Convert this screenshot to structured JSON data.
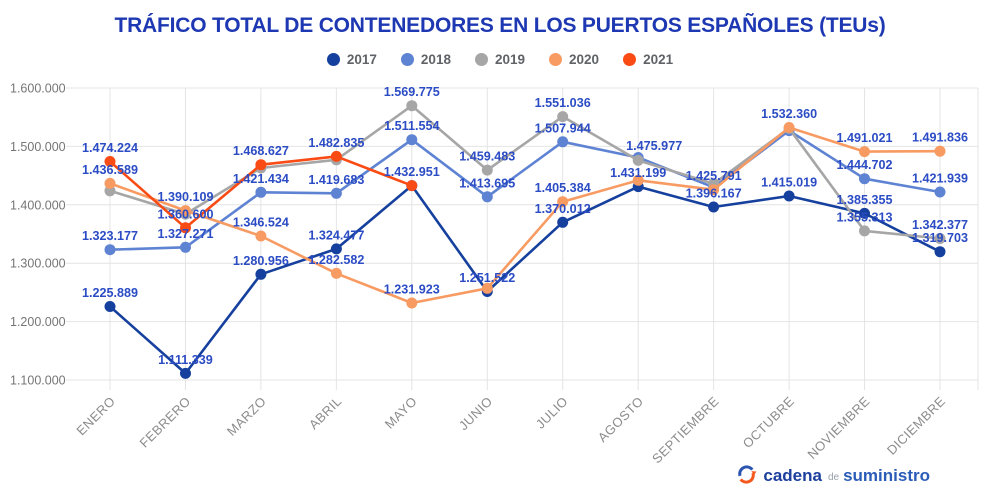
{
  "chart_data": {
    "type": "line",
    "title": "TRÁFICO TOTAL DE CONTENEDORES EN LOS PUERTOS ESPAÑOLES (TEUs)",
    "legend_position": "top",
    "grid": true,
    "categories": [
      "ENERO",
      "FEBRERO",
      "MARZO",
      "ABRIL",
      "MAYO",
      "JUNIO",
      "JULIO",
      "AGOSTO",
      "SEPTIEMBRE",
      "OCTUBRE",
      "NOVIEMBRE",
      "DICIEMBRE"
    ],
    "y_axis": {
      "min": 1100000,
      "max": 1600000,
      "step": 100000,
      "tick_values": [
        1600000,
        1500000,
        1400000,
        1300000,
        1200000,
        1100000
      ],
      "tick_labels": [
        "1.600.000",
        "1.500.000",
        "1.400.000",
        "1.300.000",
        "1.200.000",
        "1.100.000"
      ]
    },
    "series": [
      {
        "name": "2017",
        "color": "#16409e",
        "values": [
          1225889,
          1111339,
          1280956,
          1324477,
          1432951,
          1251522,
          1370012,
          1431199,
          1396167,
          1415019,
          1385355,
          1319703
        ],
        "labels": [
          "1.225.889",
          "1.111.339",
          "1.280.956",
          "1.324.477",
          null,
          "1.251.522",
          "1.370.012",
          "1.431.199",
          "1.396.167",
          "1.415.019",
          "1.385.355",
          "1.319.703"
        ],
        "label_offsets": {}
      },
      {
        "name": "2018",
        "color": "#5f83d3",
        "values": [
          1323177,
          1327271,
          1421434,
          1419683,
          1511554,
          1413695,
          1507944,
          1481000,
          1430000,
          1527000,
          1444702,
          1421939
        ],
        "labels": [
          "1.323.177",
          "1.327.271",
          "1.421.434",
          "1.419.683",
          "1.511.554",
          "1.413.695",
          "1.507.944",
          null,
          null,
          null,
          "1.444.702",
          "1.421.939"
        ],
        "label_offsets": {}
      },
      {
        "name": "2019",
        "color": "#a6a6a6",
        "values": [
          1424000,
          1384000,
          1463000,
          1477000,
          1569775,
          1459483,
          1551036,
          1475977,
          1436000,
          1531000,
          1355313,
          1342377
        ],
        "labels": [
          null,
          null,
          null,
          null,
          "1.569.775",
          "1.459.483",
          "1.551.036",
          "1.475.977",
          null,
          null,
          "1.355.313",
          "1.342.377"
        ],
        "label_offsets": {
          "7": [
            16,
            -1
          ]
        }
      },
      {
        "name": "2020",
        "color": "#f89b63",
        "values": [
          1436589,
          1390109,
          1346524,
          1282582,
          1231923,
          1257000,
          1405384,
          1442000,
          1425791,
          1532360,
          1491021,
          1491836
        ],
        "labels": [
          "1.436.589",
          "1.390.109",
          "1.346.524",
          "1.282.582",
          "1.231.923",
          null,
          "1.405.384",
          null,
          "1.425.791",
          "1.532.360",
          "1.491.021",
          "1.491.836"
        ],
        "label_offsets": {}
      },
      {
        "name": "2021",
        "color": "#fa4b14",
        "values": [
          1474224,
          1360600,
          1468627,
          1482835,
          1432951,
          null,
          null,
          null,
          null,
          null,
          null,
          null
        ],
        "labels": [
          "1.474.224",
          "1.360.600",
          "1.468.627",
          "1.482.835",
          "1.432.951",
          null,
          null,
          null,
          null,
          null,
          null,
          null
        ],
        "label_offsets": {}
      }
    ]
  },
  "colors": {
    "title": "#1d38b2",
    "data_label": "#2b4cc4",
    "axis_tick": "#757575",
    "month_label": "#8c8c8c",
    "gridline": "#e4e4e4",
    "legend_text": "#5f6368",
    "background": "#ffffff"
  },
  "logo": {
    "cadena": "cadena",
    "de": "de",
    "suministro": "suministro",
    "icon_blue": "#2b55b0",
    "icon_orange": "#f4581c",
    "cadena_color": "#1c3f9e",
    "de_color": "#98a0a8",
    "suministro_color": "#2a5cb8"
  }
}
